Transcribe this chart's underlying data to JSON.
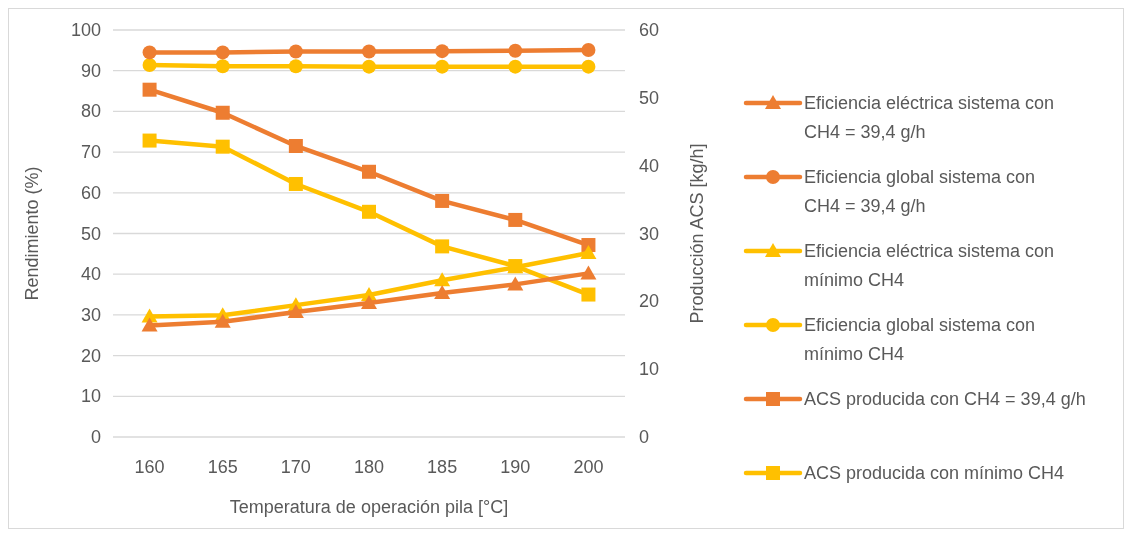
{
  "chart_data": {
    "type": "line",
    "xlabel": "Temperatura de operación pila [°C]",
    "ylabel": "Rendimiento (%)",
    "y2label": "Producción ACS [kg/h]",
    "categories": [
      "160",
      "165",
      "170",
      "180",
      "185",
      "190",
      "200"
    ],
    "ylim": [
      0,
      100
    ],
    "yticks": [
      0,
      10,
      20,
      30,
      40,
      50,
      60,
      70,
      80,
      90,
      100
    ],
    "y2lim": [
      0,
      60
    ],
    "y2ticks": [
      0,
      10,
      20,
      30,
      40,
      50,
      60
    ],
    "grid": "y",
    "legend": "right",
    "line_style": "solid",
    "series": [
      {
        "name": "Eficiencia eléctrica sistema con CH4 = 39,4 g/h",
        "color": "#ed7d31",
        "marker": "triangle",
        "values": [
          27.4,
          28.3,
          30.7,
          32.9,
          35.4,
          37.5,
          40.2
        ]
      },
      {
        "name": "Eficiencia global sistema con CH4 = 39,4 g/h",
        "color": "#ed7d31",
        "marker": "circle",
        "values": [
          94.5,
          94.5,
          94.7,
          94.7,
          94.8,
          94.9,
          95.1
        ]
      },
      {
        "name": "Eficiencia eléctrica sistema con mínimo CH4",
        "color": "#ffc000",
        "marker": "triangle",
        "values": [
          29.6,
          29.9,
          32.4,
          34.9,
          38.5,
          41.7,
          45.2
        ]
      },
      {
        "name": "Eficiencia global sistema con mínimo CH4",
        "color": "#ffc000",
        "marker": "circle",
        "values": [
          91.4,
          91.1,
          91.1,
          91.0,
          91.0,
          91.0,
          91.0
        ]
      },
      {
        "name": "ACS producida con CH4 = 39,4 g/h",
        "color": "#ed7d31",
        "marker": "square",
        "axis": "y2",
        "values": [
          51.2,
          47.8,
          42.9,
          39.1,
          34.8,
          32.0,
          28.3
        ]
      },
      {
        "name": "ACS producida con mínimo CH4",
        "color": "#ffc000",
        "marker": "square",
        "axis": "y2",
        "values": [
          43.7,
          42.8,
          37.3,
          33.2,
          28.1,
          25.2,
          21.0
        ]
      }
    ]
  }
}
